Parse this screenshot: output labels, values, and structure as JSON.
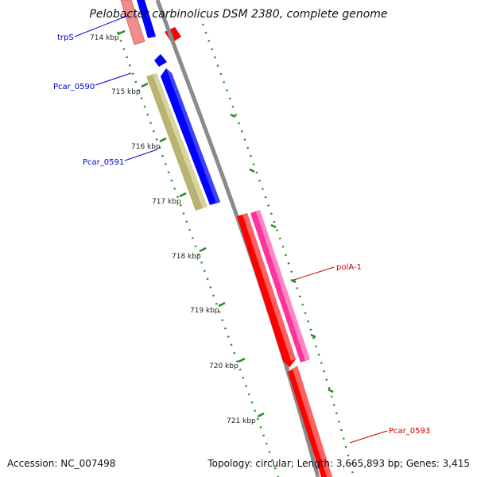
{
  "title": "Pelobacter carbinolicus DSM 2380, complete genome",
  "footer": {
    "accession": "Accession: NC_007498",
    "summary": "Topology: circular; Length: 3,665,893 bp; Genes: 3,415"
  },
  "ruler": {
    "ticks": [
      "714 kbp",
      "715 kbp",
      "716 kbp",
      "717 kbp",
      "718 kbp",
      "719 kbp",
      "720 kbp",
      "721 kbp"
    ]
  },
  "features": [
    {
      "id": "trpS",
      "label": "trpS",
      "color": "#0000cc"
    },
    {
      "id": "Pcar_0590",
      "label": "Pcar_0590",
      "color": "#0000cc"
    },
    {
      "id": "Pcar_0591",
      "label": "Pcar_0591",
      "color": "#0000cc"
    },
    {
      "id": "polA-1",
      "label": "polA-1",
      "color": "#cc0000"
    },
    {
      "id": "Pcar_0593",
      "label": "Pcar_0593",
      "color": "#cc0000"
    }
  ],
  "colors": {
    "backbone": "#8a8a8a",
    "forward_cds": "#0000ff",
    "reverse_cds": "#ff0000",
    "trna": "#f08c8c",
    "gene_olive": "#b8b470",
    "gene_magenta": "#ff3399",
    "ruler": "#228b22"
  }
}
